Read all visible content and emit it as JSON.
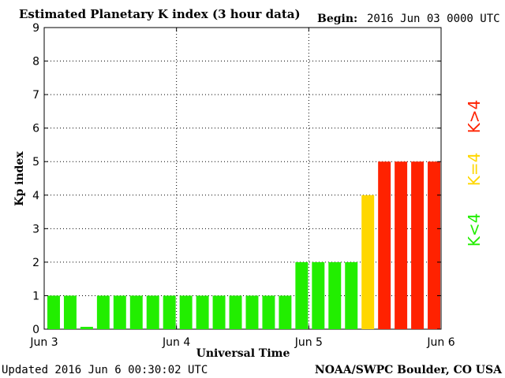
{
  "header": {
    "title": "Estimated Planetary K index (3 hour data)",
    "begin_label": "Begin:",
    "begin_value": "2016 Jun 03 0000 UTC"
  },
  "footer": {
    "updated": "Updated 2016 Jun  6 00:30:02 UTC",
    "credit": "NOAA/SWPC Boulder, CO USA"
  },
  "legend": [
    {
      "label": "K>4",
      "color": "#ff2200"
    },
    {
      "label": "K=4",
      "color": "#ffd700"
    },
    {
      "label": "K<4",
      "color": "#22ee00"
    }
  ],
  "chart_data": {
    "type": "bar",
    "title": "Estimated Planetary K index (3 hour data)",
    "xlabel": "Universal Time",
    "ylabel": "Kp index",
    "ylim": [
      0,
      9
    ],
    "yticks": [
      0,
      1,
      2,
      3,
      4,
      5,
      6,
      7,
      8,
      9
    ],
    "xticks": [
      "Jun 3",
      "Jun 4",
      "Jun 5",
      "Jun 6"
    ],
    "grid": true,
    "values": [
      1,
      1,
      0.07,
      1,
      1,
      1,
      1,
      1,
      1,
      1,
      1,
      1,
      1,
      1,
      1,
      2,
      2,
      2,
      2,
      4,
      5,
      5,
      5,
      5
    ],
    "colors": {
      "below4": "#22ee00",
      "equal4": "#ffd700",
      "above4": "#ff2200"
    }
  }
}
